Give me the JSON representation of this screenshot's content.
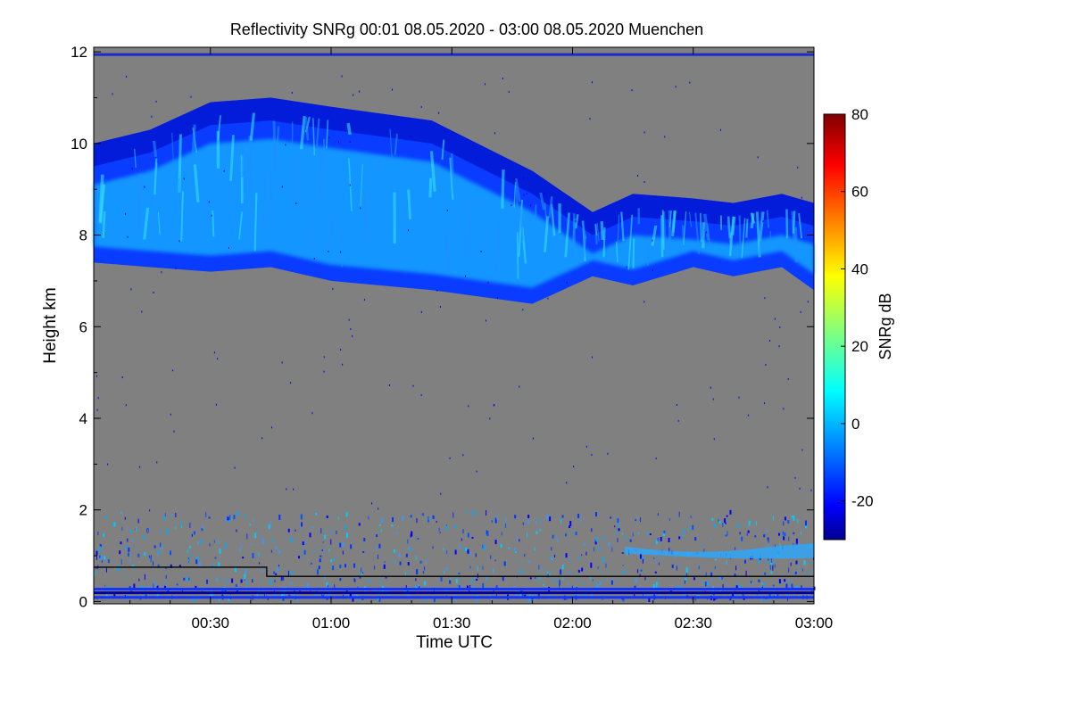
{
  "chart_data": {
    "type": "heatmap",
    "title": "Reflectivity SNRg   00:01 08.05.2020 - 03:00 08.05.2020 Muenchen",
    "xlabel": "Time UTC",
    "ylabel": "Height km",
    "xlim_minutes": [
      1,
      180
    ],
    "x_ticks": [
      {
        "minutes": 30,
        "label": "00:30"
      },
      {
        "minutes": 60,
        "label": "01:00"
      },
      {
        "minutes": 90,
        "label": "01:30"
      },
      {
        "minutes": 120,
        "label": "02:00"
      },
      {
        "minutes": 150,
        "label": "02:30"
      },
      {
        "minutes": 180,
        "label": "03:00"
      }
    ],
    "ylim": [
      -0.05,
      12.1
    ],
    "y_ticks": [
      0,
      2,
      4,
      6,
      8,
      10,
      12
    ],
    "colorbar": {
      "label": "SNRg dB",
      "range": [
        -30,
        80
      ],
      "ticks": [
        -20,
        0,
        20,
        40,
        60,
        80
      ],
      "colormap": [
        "#00008f",
        "#0000ff",
        "#00ffff",
        "#ffff00",
        "#ff0000",
        "#800000"
      ]
    },
    "background_color": "#808080",
    "cloud_layer": {
      "top_km": [
        10.0,
        10.3,
        10.9,
        11.0,
        10.8,
        10.5,
        9.4,
        8.5,
        8.9,
        8.8,
        8.7,
        8.9,
        8.7
      ],
      "base_km": [
        7.4,
        7.3,
        7.2,
        7.3,
        7.0,
        6.8,
        6.5,
        7.1,
        6.9,
        7.3,
        7.1,
        7.3,
        6.8
      ],
      "time_minutes": [
        1,
        15,
        30,
        45,
        60,
        85,
        110,
        125,
        135,
        150,
        160,
        172,
        180
      ]
    },
    "boundary_line": {
      "time_minutes": [
        1,
        44,
        44,
        180
      ],
      "height_km": [
        0.75,
        0.75,
        0.55,
        0.55
      ]
    }
  }
}
